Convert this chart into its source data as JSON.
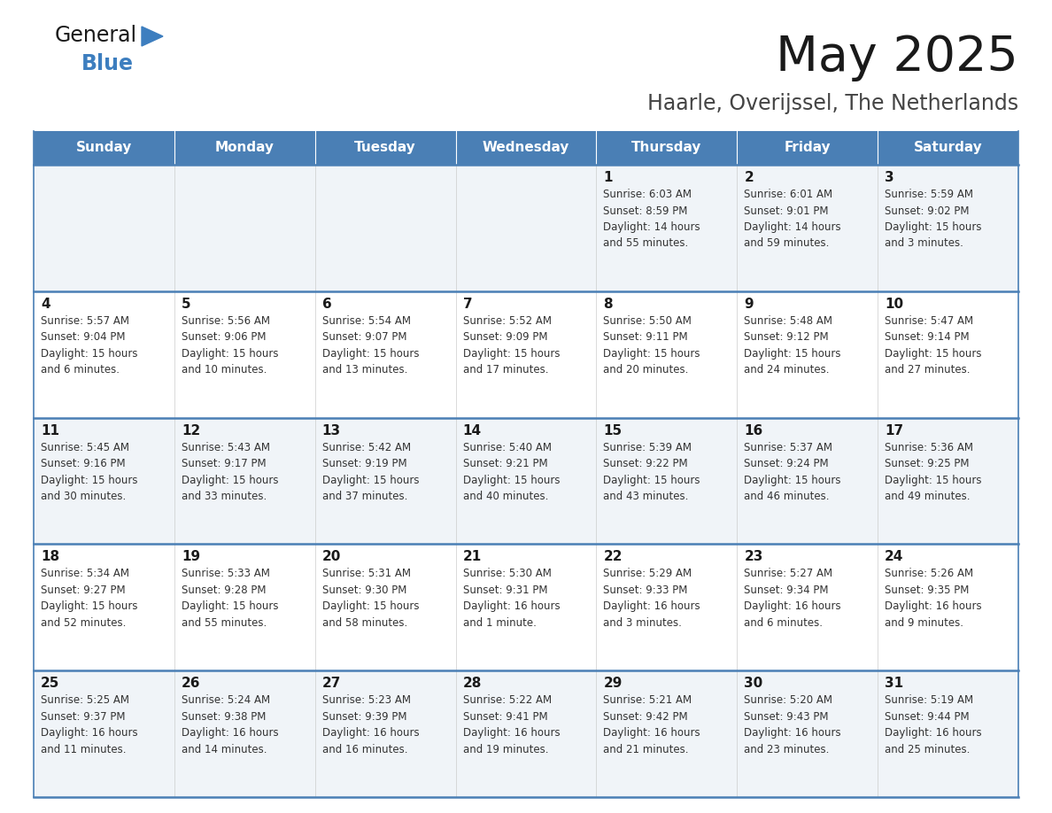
{
  "title": "May 2025",
  "subtitle": "Haarle, Overijssel, The Netherlands",
  "header_bg": "#4a7fb5",
  "header_text": "#ffffff",
  "cell_bg_light": "#f0f4f8",
  "cell_bg_white": "#ffffff",
  "border_color": "#4a7fb5",
  "text_color": "#333333",
  "days_of_week": [
    "Sunday",
    "Monday",
    "Tuesday",
    "Wednesday",
    "Thursday",
    "Friday",
    "Saturday"
  ],
  "weeks": [
    [
      {
        "day": "",
        "info": ""
      },
      {
        "day": "",
        "info": ""
      },
      {
        "day": "",
        "info": ""
      },
      {
        "day": "",
        "info": ""
      },
      {
        "day": "1",
        "info": "Sunrise: 6:03 AM\nSunset: 8:59 PM\nDaylight: 14 hours\nand 55 minutes."
      },
      {
        "day": "2",
        "info": "Sunrise: 6:01 AM\nSunset: 9:01 PM\nDaylight: 14 hours\nand 59 minutes."
      },
      {
        "day": "3",
        "info": "Sunrise: 5:59 AM\nSunset: 9:02 PM\nDaylight: 15 hours\nand 3 minutes."
      }
    ],
    [
      {
        "day": "4",
        "info": "Sunrise: 5:57 AM\nSunset: 9:04 PM\nDaylight: 15 hours\nand 6 minutes."
      },
      {
        "day": "5",
        "info": "Sunrise: 5:56 AM\nSunset: 9:06 PM\nDaylight: 15 hours\nand 10 minutes."
      },
      {
        "day": "6",
        "info": "Sunrise: 5:54 AM\nSunset: 9:07 PM\nDaylight: 15 hours\nand 13 minutes."
      },
      {
        "day": "7",
        "info": "Sunrise: 5:52 AM\nSunset: 9:09 PM\nDaylight: 15 hours\nand 17 minutes."
      },
      {
        "day": "8",
        "info": "Sunrise: 5:50 AM\nSunset: 9:11 PM\nDaylight: 15 hours\nand 20 minutes."
      },
      {
        "day": "9",
        "info": "Sunrise: 5:48 AM\nSunset: 9:12 PM\nDaylight: 15 hours\nand 24 minutes."
      },
      {
        "day": "10",
        "info": "Sunrise: 5:47 AM\nSunset: 9:14 PM\nDaylight: 15 hours\nand 27 minutes."
      }
    ],
    [
      {
        "day": "11",
        "info": "Sunrise: 5:45 AM\nSunset: 9:16 PM\nDaylight: 15 hours\nand 30 minutes."
      },
      {
        "day": "12",
        "info": "Sunrise: 5:43 AM\nSunset: 9:17 PM\nDaylight: 15 hours\nand 33 minutes."
      },
      {
        "day": "13",
        "info": "Sunrise: 5:42 AM\nSunset: 9:19 PM\nDaylight: 15 hours\nand 37 minutes."
      },
      {
        "day": "14",
        "info": "Sunrise: 5:40 AM\nSunset: 9:21 PM\nDaylight: 15 hours\nand 40 minutes."
      },
      {
        "day": "15",
        "info": "Sunrise: 5:39 AM\nSunset: 9:22 PM\nDaylight: 15 hours\nand 43 minutes."
      },
      {
        "day": "16",
        "info": "Sunrise: 5:37 AM\nSunset: 9:24 PM\nDaylight: 15 hours\nand 46 minutes."
      },
      {
        "day": "17",
        "info": "Sunrise: 5:36 AM\nSunset: 9:25 PM\nDaylight: 15 hours\nand 49 minutes."
      }
    ],
    [
      {
        "day": "18",
        "info": "Sunrise: 5:34 AM\nSunset: 9:27 PM\nDaylight: 15 hours\nand 52 minutes."
      },
      {
        "day": "19",
        "info": "Sunrise: 5:33 AM\nSunset: 9:28 PM\nDaylight: 15 hours\nand 55 minutes."
      },
      {
        "day": "20",
        "info": "Sunrise: 5:31 AM\nSunset: 9:30 PM\nDaylight: 15 hours\nand 58 minutes."
      },
      {
        "day": "21",
        "info": "Sunrise: 5:30 AM\nSunset: 9:31 PM\nDaylight: 16 hours\nand 1 minute."
      },
      {
        "day": "22",
        "info": "Sunrise: 5:29 AM\nSunset: 9:33 PM\nDaylight: 16 hours\nand 3 minutes."
      },
      {
        "day": "23",
        "info": "Sunrise: 5:27 AM\nSunset: 9:34 PM\nDaylight: 16 hours\nand 6 minutes."
      },
      {
        "day": "24",
        "info": "Sunrise: 5:26 AM\nSunset: 9:35 PM\nDaylight: 16 hours\nand 9 minutes."
      }
    ],
    [
      {
        "day": "25",
        "info": "Sunrise: 5:25 AM\nSunset: 9:37 PM\nDaylight: 16 hours\nand 11 minutes."
      },
      {
        "day": "26",
        "info": "Sunrise: 5:24 AM\nSunset: 9:38 PM\nDaylight: 16 hours\nand 14 minutes."
      },
      {
        "day": "27",
        "info": "Sunrise: 5:23 AM\nSunset: 9:39 PM\nDaylight: 16 hours\nand 16 minutes."
      },
      {
        "day": "28",
        "info": "Sunrise: 5:22 AM\nSunset: 9:41 PM\nDaylight: 16 hours\nand 19 minutes."
      },
      {
        "day": "29",
        "info": "Sunrise: 5:21 AM\nSunset: 9:42 PM\nDaylight: 16 hours\nand 21 minutes."
      },
      {
        "day": "30",
        "info": "Sunrise: 5:20 AM\nSunset: 9:43 PM\nDaylight: 16 hours\nand 23 minutes."
      },
      {
        "day": "31",
        "info": "Sunrise: 5:19 AM\nSunset: 9:44 PM\nDaylight: 16 hours\nand 25 minutes."
      }
    ]
  ],
  "logo_color_general": "#1a1a1a",
  "logo_color_blue": "#3d7ebf",
  "logo_triangle_color": "#3d7ebf",
  "title_fontsize": 40,
  "subtitle_fontsize": 17,
  "header_fontsize": 11,
  "day_num_fontsize": 11,
  "info_fontsize": 8.5
}
